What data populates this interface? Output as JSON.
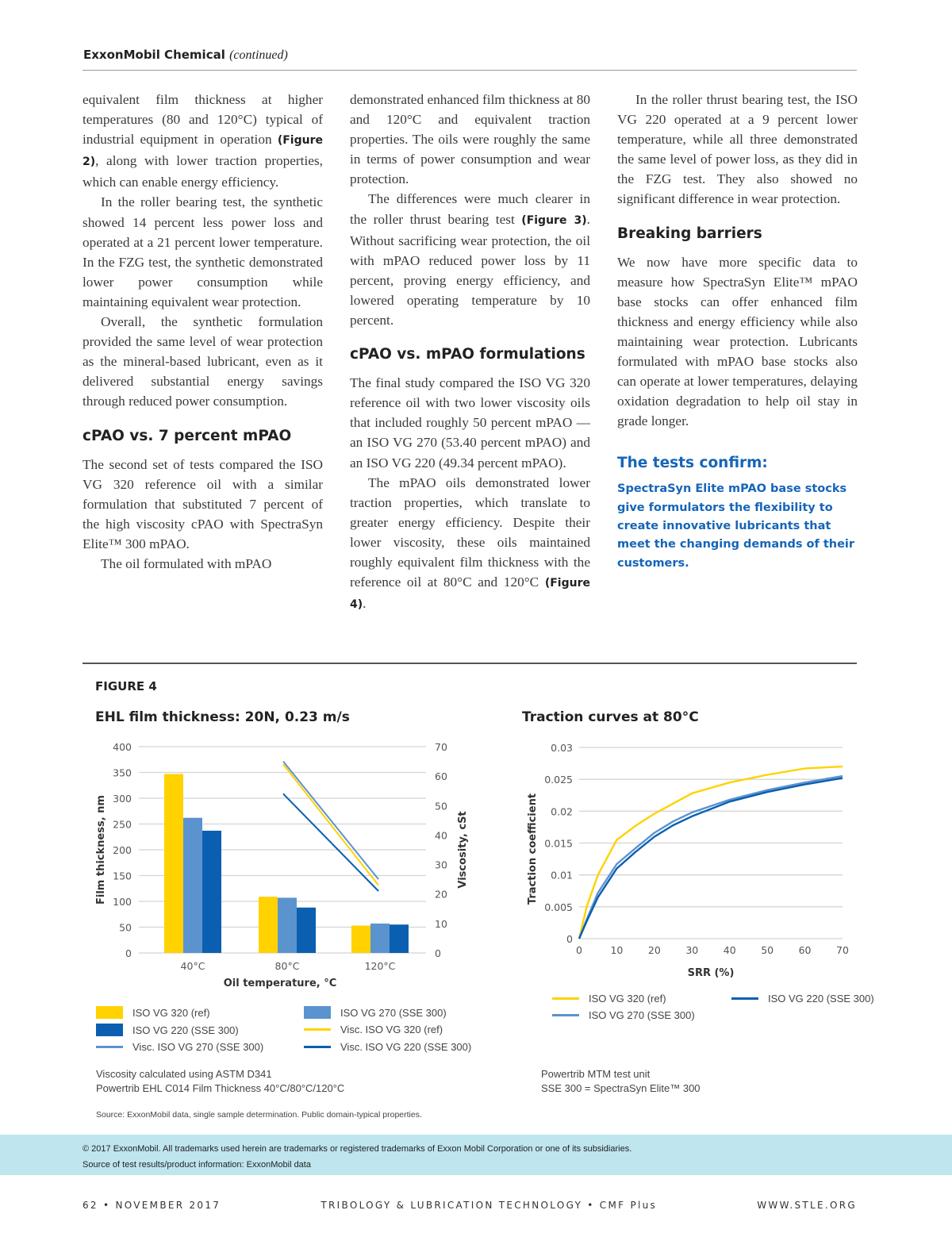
{
  "header": {
    "title": "ExxonMobil Chemical",
    "subtitle": "(continued)"
  },
  "columns": [
    [
      {
        "type": "p",
        "indent": false,
        "segs": [
          {
            "t": "equivalent film thickness at higher temperatures (80 and 120°C) typical of industrial equipment in operation "
          },
          {
            "t": "(Figure 2)",
            "b": true
          },
          {
            "t": ", along with lower traction properties, which can enable energy efficiency."
          }
        ]
      },
      {
        "type": "p",
        "indent": true,
        "segs": [
          {
            "t": "In the roller bearing test, the synthetic showed 14 percent less power loss and operated at a 21 percent lower temperature. In the FZG test, the synthetic demonstrated lower power consumption while maintaining equivalent wear protection."
          }
        ]
      },
      {
        "type": "p",
        "indent": true,
        "segs": [
          {
            "t": "Overall, the synthetic formulation provided the same level of wear protection as the mineral-based lubricant, even as it delivered substantial energy savings through reduced power consumption."
          }
        ]
      },
      {
        "type": "h",
        "text": "cPAO vs. 7 percent mPAO"
      },
      {
        "type": "p",
        "indent": false,
        "segs": [
          {
            "t": "The second set of tests compared the ISO VG 320 reference oil with a similar formulation that substituted 7 percent of the high viscosity cPAO with SpectraSyn Elite™ 300 mPAO."
          }
        ]
      },
      {
        "type": "p",
        "indent": true,
        "segs": [
          {
            "t": "The oil formulated with mPAO"
          }
        ]
      }
    ],
    [
      {
        "type": "p",
        "indent": false,
        "segs": [
          {
            "t": "demonstrated enhanced film thickness at 80 and 120°C and equivalent traction properties. The oils were roughly the same in terms of power consumption and wear protection."
          }
        ]
      },
      {
        "type": "p",
        "indent": true,
        "segs": [
          {
            "t": "The differences were much clearer in the roller thrust bearing test "
          },
          {
            "t": "(Figure 3)",
            "b": true
          },
          {
            "t": ". Without sacrificing wear protection, the oil with mPAO reduced power loss by 11 percent, proving energy efficiency, and lowered operating temperature by 10 percent."
          }
        ]
      },
      {
        "type": "h",
        "text": "cPAO vs. mPAO formulations"
      },
      {
        "type": "p",
        "indent": false,
        "segs": [
          {
            "t": "The final study compared the ISO VG 320 reference oil with two lower viscosity oils that included roughly 50 percent mPAO — an ISO VG 270 (53.40 percent mPAO) and an ISO VG 220 (49.34 percent mPAO)."
          }
        ]
      },
      {
        "type": "p",
        "indent": true,
        "segs": [
          {
            "t": "The mPAO oils demonstrated lower traction properties, which translate to greater energy efficiency. Despite their lower viscosity, these oils maintained roughly equivalent film thickness with the reference oil at 80°C and 120°C "
          },
          {
            "t": "(Figure 4)",
            "b": true
          },
          {
            "t": "."
          }
        ]
      }
    ],
    [
      {
        "type": "p",
        "indent": true,
        "segs": [
          {
            "t": "In the roller thrust bearing test, the ISO VG 220 operated at a 9 percent lower temperature, while all three demonstrated the same level of power loss, as they did in the FZG test. They also showed no significant difference in wear protection."
          }
        ]
      },
      {
        "type": "h",
        "text": "Breaking barriers"
      },
      {
        "type": "p",
        "indent": false,
        "segs": [
          {
            "t": "We now have more specific data to measure how SpectraSyn Elite™ mPAO base stocks can offer enhanced film thickness and energy efficiency while also maintaining wear protection. Lubricants formulated with mPAO base stocks also can operate at lower temperatures, delaying oxidation degradation to help oil stay in grade longer."
          }
        ]
      },
      {
        "type": "h4",
        "text": "The tests confirm:"
      },
      {
        "type": "callout",
        "text": "SpectraSyn Elite mPAO base stocks give formulators the flexibility to create innovative lubricants that meet the changing demands of their customers."
      }
    ]
  ],
  "figure": {
    "label": "FIGURE 4"
  },
  "colors": {
    "yellow": "#ffd200",
    "light_blue": "#5b93cf",
    "dark_blue": "#0a5fb0",
    "grid": "#d4d4d4",
    "band": "#bfe5ee",
    "accent": "#1565b8"
  },
  "chart_data": [
    {
      "type": "bar",
      "title": "EHL film thickness: 20N, 0.23 m/s",
      "xlabel": "Oil temperature, °C",
      "ylabel": "Film thickness, nm",
      "y2label": "Viscosity, cSt",
      "categories": [
        "40°C",
        "80°C",
        "120°C"
      ],
      "ylim": [
        0,
        400
      ],
      "yticks": [
        "0",
        "50",
        "100",
        "150",
        "200",
        "250",
        "300",
        "350",
        "400"
      ],
      "y2lim": [
        0,
        70
      ],
      "y2ticks": [
        "0",
        "10",
        "20",
        "30",
        "40",
        "50",
        "60",
        "70"
      ],
      "series": [
        {
          "name": "ISO VG 320 (ref)",
          "color": "#ffd200",
          "values": [
            347,
            109,
            53
          ]
        },
        {
          "name": "ISO VG 270 (SSE 300)",
          "color": "#5b93cf",
          "values": [
            262,
            107,
            57
          ]
        },
        {
          "name": "ISO VG 220 (SSE 300)",
          "color": "#0a5fb0",
          "values": [
            237,
            88,
            55
          ]
        }
      ],
      "line_series": [
        {
          "name": "Visc. ISO VG 320 (ref)",
          "color": "#ffd200",
          "x": [
            "80°C",
            "120°C"
          ],
          "values": [
            64,
            23
          ]
        },
        {
          "name": "Visc. ISO VG 270 (SSE 300)",
          "color": "#5b93cf",
          "x": [
            "80°C",
            "120°C"
          ],
          "values": [
            65,
            25
          ]
        },
        {
          "name": "Visc. ISO VG 220 (SSE 300)",
          "color": "#0a5fb0",
          "x": [
            "80°C",
            "120°C"
          ],
          "values": [
            54,
            21
          ]
        }
      ],
      "legend": [
        "ISO VG 320 (ref)",
        "ISO VG 270 (SSE 300)",
        "ISO VG 220 (SSE 300)",
        "Visc. ISO VG 320 (ref)",
        "Visc. ISO VG 270 (SSE 300)",
        "Visc. ISO VG 220 (SSE 300)"
      ],
      "notes": [
        "Viscosity calculated using ASTM D341",
        "Powertrib EHL C014 Film Thickness 40°C/80°C/120°C"
      ],
      "grid": true
    },
    {
      "type": "line",
      "title": "Traction curves at 80°C",
      "xlabel": "SRR (%)",
      "ylabel": "Traction coefficient",
      "xlim": [
        0,
        70
      ],
      "xticks": [
        "0",
        "10",
        "20",
        "30",
        "40",
        "50",
        "60",
        "70"
      ],
      "ylim": [
        0,
        0.03
      ],
      "yticks": [
        "0",
        "0.005",
        "0.01",
        "0.015",
        "0.02",
        "0.025",
        "0.03"
      ],
      "x": [
        0,
        2,
        5,
        10,
        15,
        20,
        25,
        30,
        40,
        50,
        60,
        70
      ],
      "series": [
        {
          "name": "ISO VG 320 (ref)",
          "color": "#ffd200",
          "values": [
            0,
            0.005,
            0.01,
            0.0155,
            0.0177,
            0.0196,
            0.0212,
            0.0228,
            0.0245,
            0.0257,
            0.0267,
            0.027
          ]
        },
        {
          "name": "ISO VG 270 (SSE 300)",
          "color": "#5b93cf",
          "values": [
            0,
            0.003,
            0.0072,
            0.0117,
            0.0142,
            0.0166,
            0.0184,
            0.0198,
            0.0218,
            0.0233,
            0.0245,
            0.0255
          ]
        },
        {
          "name": "ISO VG 220 (SSE 300)",
          "color": "#0a5fb0",
          "values": [
            0,
            0.0027,
            0.0065,
            0.011,
            0.0136,
            0.016,
            0.0178,
            0.0192,
            0.0215,
            0.023,
            0.0242,
            0.0252
          ]
        }
      ],
      "notes": [
        "Powertrib MTM test unit",
        "SSE 300 = SpectraSyn Elite™ 300"
      ],
      "grid": true
    }
  ],
  "source": "Source: ExxonMobil data, single sample determination. Public domain-typical properties.",
  "band": {
    "line1": "© 2017 ExxonMobil. All trademarks used herein are trademarks or registered trademarks of Exxon Mobil Corporation or one of its subsidiaries.",
    "line2": "Source of test results/product information: ExxonMobil data"
  },
  "footer": {
    "left": "62 • NOVEMBER 2017",
    "center": "TRIBOLOGY & LUBRICATION TECHNOLOGY • CMF Plus",
    "right": "WWW.STLE.ORG"
  }
}
